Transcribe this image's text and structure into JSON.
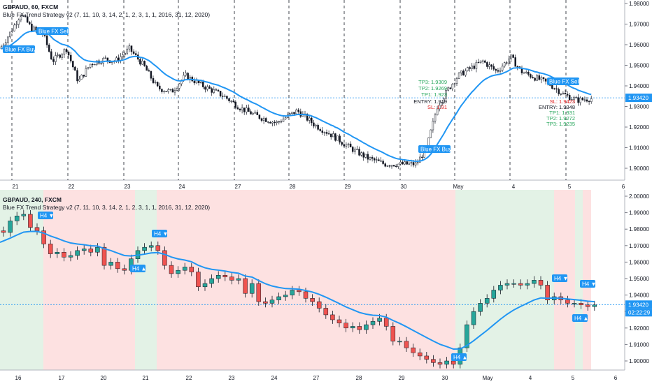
{
  "top": {
    "symbol": "GBPAUD, 60, FXCM",
    "indicator": "Blue FX Trend Strategy v2 (7, 11, 10, 3, 14, 2, 1, 2, 3, 1, 1, 2016, 31, 12, 2020)",
    "price_axis": [
      "1.98000",
      "1.97000",
      "1.96000",
      "1.95000",
      "1.94000",
      "1.93000",
      "1.92000",
      "1.91000",
      "1.90000"
    ],
    "current_price": "1.93420",
    "time_axis": [
      "21",
      "22",
      "23",
      "24",
      "27",
      "28",
      "29",
      "30",
      "May",
      "4",
      "5",
      "6"
    ],
    "signals": [
      "Blue FX Sell",
      "Blue FX Buy",
      "Blue FX Buy",
      "Blue FX Sell"
    ],
    "buy_levels": {
      "tp3": "TP3: 1.9309",
      "tp2": "TP2: 1.9269",
      "tp1": "TP1: 1.923",
      "entry": "ENTRY: 1.919",
      "sl": "SL: 1.91"
    },
    "sell_levels": {
      "sl": "SL: 1.9423",
      "entry": "ENTRY: 1.9348",
      "tp1": "TP1: 1.931",
      "tp2": "TP2: 1.9272",
      "tp3": "TP3: 1.9235"
    }
  },
  "bottom": {
    "symbol": "GBPAUD, 240, FXCM",
    "indicator": "Blue FX Trend Strategy v2 (7, 11, 10, 3, 14, 2, 1, 2, 3, 1, 1, 2016, 31, 12, 2020)",
    "price_axis": [
      "2.00000",
      "1.99000",
      "1.98000",
      "1.97000",
      "1.96000",
      "1.95000",
      "1.94000",
      "1.93000",
      "1.92000",
      "1.91000",
      "1.90000"
    ],
    "current_price": "1.93420",
    "countdown": "02:22:29",
    "time_axis": [
      "16",
      "17",
      "20",
      "21",
      "22",
      "23",
      "24",
      "27",
      "28",
      "29",
      "30",
      "May",
      "4",
      "5",
      "6"
    ],
    "signals": [
      "H4 ▼",
      "H4 ▼",
      "H4 ▲",
      "H4 ▼",
      "H4 ▼",
      "H4 ▲",
      "H4 ▲"
    ]
  },
  "colors": {
    "up": "#26a69a",
    "down": "#ef5350",
    "ema": "#2196f3",
    "tag": "#2196f3",
    "bg_green": "#e3f2e6",
    "bg_red": "#fde1e1"
  }
}
